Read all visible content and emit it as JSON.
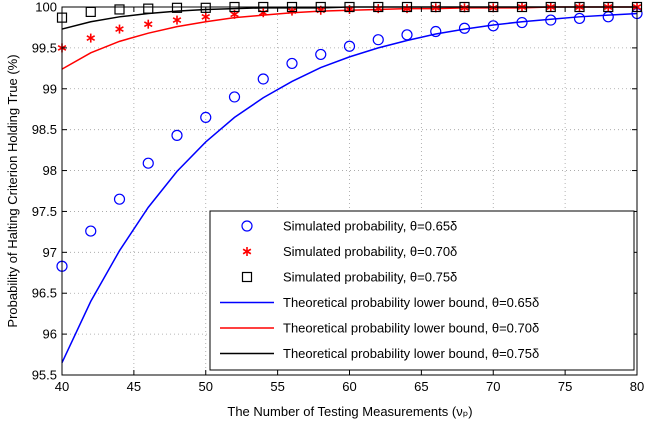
{
  "chart_data": {
    "type": "line",
    "xlabel": "The Number of Testing Measurements (νₚ)",
    "ylabel": "Probability of Halting Criterion Holding True (%)",
    "xlim": [
      40,
      80
    ],
    "ylim": [
      95.5,
      100
    ],
    "xticks": [
      "40",
      "45",
      "50",
      "55",
      "60",
      "65",
      "70",
      "75",
      "80"
    ],
    "yticks": [
      "95.5",
      "96",
      "96.5",
      "97",
      "97.5",
      "98",
      "98.5",
      "99",
      "99.5",
      "100"
    ],
    "grid": true,
    "legend_position": "bottom-right",
    "series": [
      {
        "name": "Simulated probability, θ=0.65δ",
        "kind": "markers",
        "marker": "circle",
        "color": "#0000ff",
        "x": [
          40,
          42,
          44,
          46,
          48,
          50,
          52,
          54,
          56,
          58,
          60,
          62,
          64,
          66,
          68,
          70,
          72,
          74,
          76,
          78,
          80
        ],
        "y": [
          96.83,
          97.26,
          97.65,
          98.09,
          98.43,
          98.65,
          98.9,
          99.12,
          99.31,
          99.42,
          99.52,
          99.6,
          99.66,
          99.7,
          99.74,
          99.77,
          99.81,
          99.84,
          99.86,
          99.88,
          99.92
        ]
      },
      {
        "name": "Simulated probability, θ=0.70δ",
        "kind": "markers",
        "marker": "asterisk",
        "color": "#ff0000",
        "x": [
          40,
          42,
          44,
          46,
          48,
          50,
          52,
          54,
          56,
          58,
          60,
          62,
          64,
          66,
          68,
          70,
          72,
          74,
          76,
          78,
          80
        ],
        "y": [
          99.5,
          99.62,
          99.73,
          99.79,
          99.84,
          99.88,
          99.91,
          99.93,
          99.95,
          99.96,
          99.97,
          99.98,
          99.98,
          99.99,
          99.99,
          99.99,
          100.0,
          100.0,
          100.0,
          100.0,
          100.0
        ]
      },
      {
        "name": "Simulated probability, θ=0.75δ",
        "kind": "markers",
        "marker": "square",
        "color": "#000000",
        "x": [
          40,
          42,
          44,
          46,
          48,
          50,
          52,
          54,
          56,
          58,
          60,
          62,
          64,
          66,
          68,
          70,
          72,
          74,
          76,
          78,
          80
        ],
        "y": [
          99.87,
          99.94,
          99.97,
          99.98,
          99.99,
          99.99,
          100.0,
          100.0,
          100.0,
          100.0,
          100.0,
          100.0,
          100.0,
          100.0,
          100.0,
          100.0,
          100.0,
          100.0,
          100.0,
          100.0,
          100.0
        ]
      },
      {
        "name": "Theoretical probability lower bound, θ=0.65δ",
        "kind": "line",
        "color": "#0000ff",
        "x": [
          40,
          42,
          44,
          46,
          48,
          50,
          52,
          54,
          56,
          58,
          60,
          62,
          64,
          66,
          68,
          70,
          72,
          74,
          76,
          78,
          80
        ],
        "y": [
          95.65,
          96.4,
          97.02,
          97.55,
          97.99,
          98.35,
          98.65,
          98.89,
          99.09,
          99.26,
          99.39,
          99.5,
          99.59,
          99.67,
          99.73,
          99.78,
          99.82,
          99.85,
          99.88,
          99.9,
          99.92
        ]
      },
      {
        "name": "Theoretical probability lower bound, θ=0.70δ",
        "kind": "line",
        "color": "#ff0000",
        "x": [
          40,
          42,
          44,
          46,
          48,
          50,
          52,
          54,
          56,
          58,
          60,
          62,
          64,
          66,
          68,
          70,
          72,
          74,
          76,
          78,
          80
        ],
        "y": [
          99.24,
          99.44,
          99.58,
          99.68,
          99.76,
          99.82,
          99.87,
          99.9,
          99.93,
          99.95,
          99.96,
          99.97,
          99.98,
          99.98,
          99.99,
          99.99,
          99.99,
          100.0,
          100.0,
          100.0,
          100.0
        ]
      },
      {
        "name": "Theoretical probability lower bound, θ=0.75δ",
        "kind": "line",
        "color": "#000000",
        "x": [
          40,
          42,
          44,
          46,
          48,
          50,
          52,
          54,
          56,
          58,
          60,
          62,
          64,
          66,
          68,
          70,
          72,
          74,
          76,
          78,
          80
        ],
        "y": [
          99.73,
          99.82,
          99.88,
          99.92,
          99.95,
          99.97,
          99.98,
          99.99,
          99.99,
          99.99,
          100.0,
          100.0,
          100.0,
          100.0,
          100.0,
          100.0,
          100.0,
          100.0,
          100.0,
          100.0,
          100.0
        ]
      }
    ]
  }
}
